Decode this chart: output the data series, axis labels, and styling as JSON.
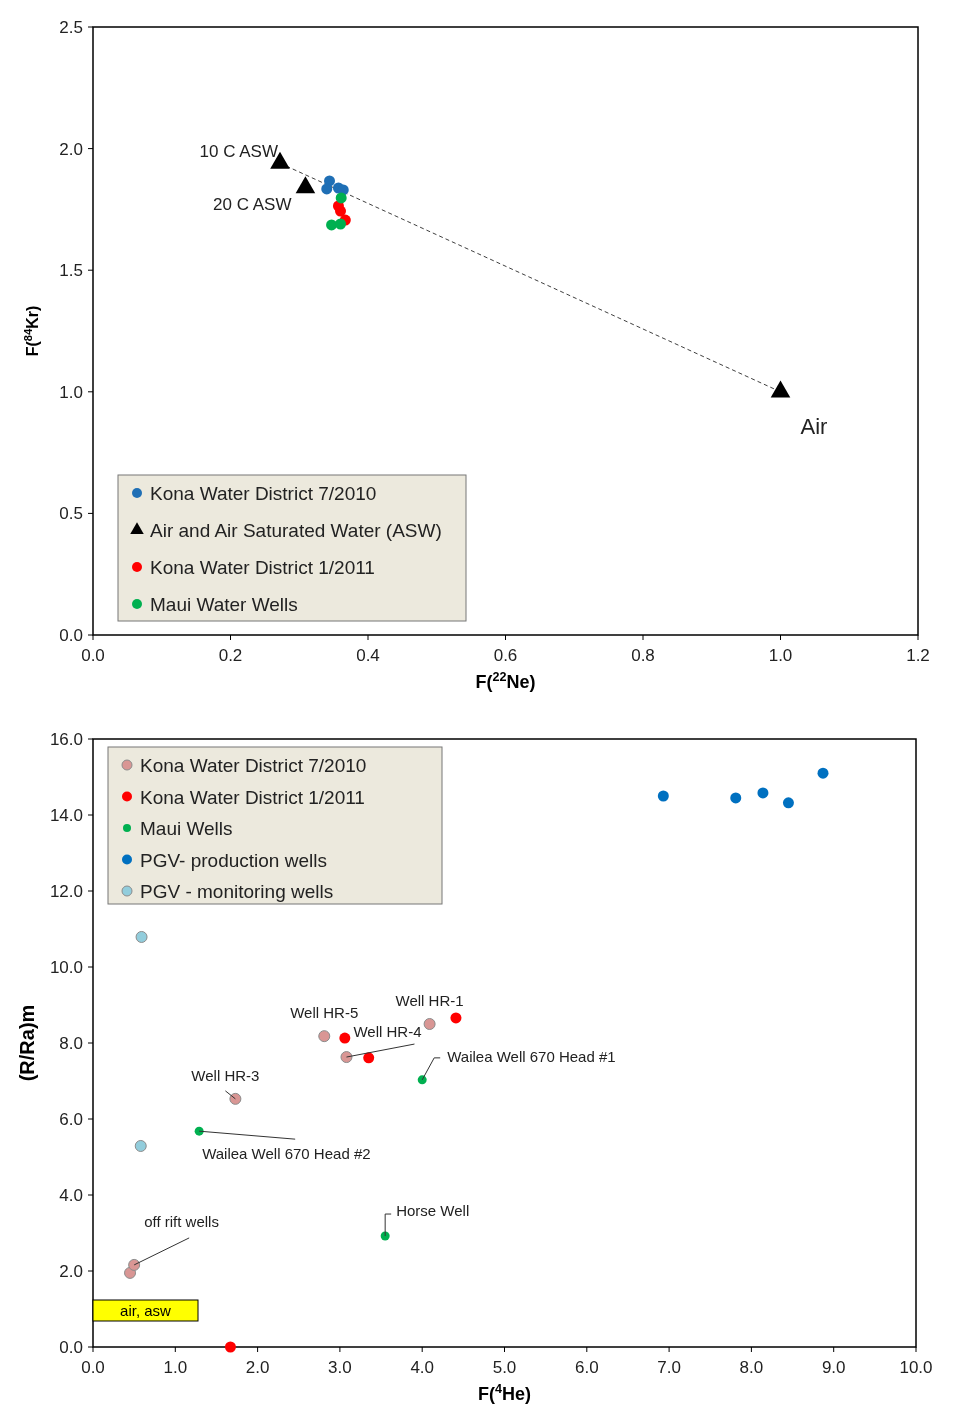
{
  "chart_data": [
    {
      "type": "scatter",
      "xlabel": "F($^{22}$Ne)",
      "ylabel": "F($^{84}$Kr)",
      "xlim": [
        0,
        1.2
      ],
      "ylim": [
        0,
        2.5
      ],
      "xticks": [
        {
          "value": 0,
          "label": "0.0"
        },
        {
          "value": 0.2,
          "label": "0.2"
        },
        {
          "value": 0.4,
          "label": "0.4"
        },
        {
          "value": 0.6,
          "label": "0.6"
        },
        {
          "value": 0.8,
          "label": "0.8"
        },
        {
          "value": 1,
          "label": "1.0"
        },
        {
          "value": 1.2,
          "label": "1.2"
        }
      ],
      "yticks": [
        {
          "value": 0,
          "label": "0.0"
        },
        {
          "value": 0.5,
          "label": "0.5"
        },
        {
          "value": 1,
          "label": "1.0"
        },
        {
          "value": 1.5,
          "label": "1.5"
        },
        {
          "value": 2,
          "label": "2.0"
        },
        {
          "value": 2.5,
          "label": "2.5"
        }
      ],
      "grid": false,
      "legend": "bottom left",
      "series": [
        {
          "type": "line",
          "color": "#404040",
          "line_style": "dashed",
          "marker": "none",
          "x": [
            0.272,
            1.0
          ],
          "values": [
            1.94,
            1.0
          ]
        },
        {
          "name": "Kona Water District 7/2010",
          "color": "#1f6fb5",
          "marker": "circle",
          "x": [
            0.344,
            0.34,
            0.357,
            0.364
          ],
          "values": [
            1.867,
            1.834,
            1.838,
            1.83
          ]
        },
        {
          "name": "Air and Air Saturated Water (ASW)",
          "color": "#000000",
          "marker": "triangle",
          "x": [
            0.272,
            0.309,
            1.0
          ],
          "values": [
            1.94,
            1.84,
            1.0
          ]
        },
        {
          "name": "Kona Water District 1/2011",
          "color": "#ff0000",
          "marker": "circle",
          "x": [
            0.357,
            0.36,
            0.367
          ],
          "values": [
            1.764,
            1.743,
            1.706
          ]
        },
        {
          "name": "Maui Water Wells",
          "color": "#00b050",
          "marker": "circle",
          "x": [
            0.361,
            0.347,
            0.36
          ],
          "values": [
            1.797,
            1.686,
            1.69
          ]
        }
      ],
      "annotations": [
        {
          "text": "10 C ASW",
          "x": 0.272,
          "y": 1.94
        },
        {
          "text": "20 C ASW",
          "x": 0.309,
          "y": 1.84
        },
        {
          "text": "Air",
          "x": 1.0,
          "y": 1.0
        }
      ]
    },
    {
      "type": "scatter",
      "xlabel": "F($^{4}$He)",
      "ylabel": "(R/Ra)m",
      "xlim": [
        0,
        10
      ],
      "ylim": [
        0,
        16
      ],
      "xticks": [
        {
          "value": 0,
          "label": "0.0"
        },
        {
          "value": 1,
          "label": "1.0"
        },
        {
          "value": 2,
          "label": "2.0"
        },
        {
          "value": 3,
          "label": "3.0"
        },
        {
          "value": 4,
          "label": "4.0"
        },
        {
          "value": 5,
          "label": "5.0"
        },
        {
          "value": 6,
          "label": "6.0"
        },
        {
          "value": 7,
          "label": "7.0"
        },
        {
          "value": 8,
          "label": "8.0"
        },
        {
          "value": 9,
          "label": "9.0"
        },
        {
          "value": 10,
          "label": "10.0"
        }
      ],
      "yticks": [
        {
          "value": 0,
          "label": "0.0"
        },
        {
          "value": 2,
          "label": "2.0"
        },
        {
          "value": 4,
          "label": "4.0"
        },
        {
          "value": 6,
          "label": "6.0"
        },
        {
          "value": 8,
          "label": "8.0"
        },
        {
          "value": 10,
          "label": "10.0"
        },
        {
          "value": 12,
          "label": "12.0"
        },
        {
          "value": 14,
          "label": "14.0"
        },
        {
          "value": 16,
          "label": "16.0"
        }
      ],
      "grid": false,
      "legend": "top left",
      "marker": "circle",
      "series": [
        {
          "name": "Kona Water District 7/2010",
          "color": "#d99694",
          "x": [
            0.45,
            0.5,
            1.73,
            2.81,
            3.08,
            4.09
          ],
          "values": [
            1.95,
            2.16,
            6.53,
            8.18,
            7.63,
            8.5
          ]
        },
        {
          "name": "Kona Water District 1/2011",
          "color": "#ff0000",
          "x": [
            3.06,
            3.35,
            4.41,
            1.67
          ],
          "values": [
            8.13,
            7.61,
            8.66,
            0.0
          ]
        },
        {
          "name": "Maui Wells",
          "color": "#00b050",
          "x": [
            4.0,
            1.29,
            3.55
          ],
          "values": [
            7.03,
            5.68,
            2.92
          ]
        },
        {
          "name": "PGV- production wells",
          "color": "#0070c0",
          "x": [
            6.93,
            7.81,
            8.14,
            8.45,
            8.87
          ],
          "values": [
            14.5,
            14.45,
            14.58,
            14.32,
            15.1
          ]
        },
        {
          "name": "PGV - monitoring wells",
          "color": "#92cddc",
          "x": [
            0.59,
            0.58
          ],
          "values": [
            10.79,
            5.29
          ]
        }
      ],
      "annotations": [
        {
          "text": "Well HR-1",
          "x": 4.09,
          "y": 8.5
        },
        {
          "text": "Well HR-5",
          "x": 2.81,
          "y": 8.18
        },
        {
          "text": "Well HR-4",
          "x": 3.08,
          "y": 7.63
        },
        {
          "text": "Well HR-3",
          "x": 1.73,
          "y": 6.53
        },
        {
          "text": "Wailea Well 670 Head #1",
          "x": 4.0,
          "y": 7.03
        },
        {
          "text": "Wailea Well 670 Head #2",
          "x": 1.29,
          "y": 5.68
        },
        {
          "text": "Horse Well",
          "x": 3.55,
          "y": 2.92
        },
        {
          "text": "off rift wells",
          "x": 0.5,
          "y": 2.16
        },
        "air, asw"
      ]
    }
  ]
}
